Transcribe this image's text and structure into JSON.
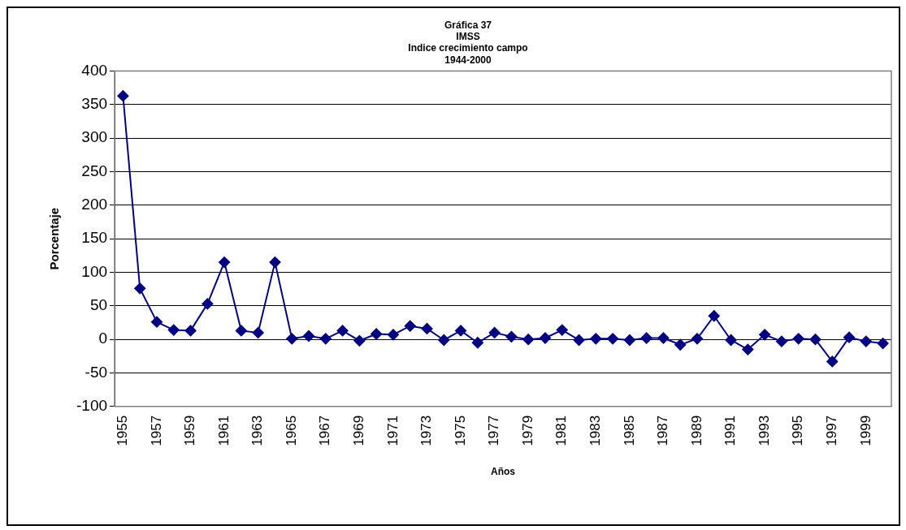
{
  "chart_data": {
    "type": "line",
    "title": "Gráfica 37\nIMSS\nIndice crecimiento campo\n1944-2000",
    "xlabel": "Años",
    "ylabel": "Porcentaje",
    "categories": [
      "1955",
      null,
      "1957",
      null,
      "1959",
      null,
      "1961",
      null,
      "1963",
      null,
      "1965",
      null,
      "1967",
      null,
      "1969",
      null,
      "1971",
      null,
      "1973",
      null,
      "1975",
      null,
      "1977",
      null,
      "1979",
      null,
      "1981",
      null,
      "1983",
      null,
      "1985",
      null,
      "1987",
      null,
      "1989",
      null,
      "1991",
      null,
      "1993",
      null,
      "1995",
      null,
      "1997",
      null,
      "1999",
      null
    ],
    "series": [
      {
        "color": "#000080",
        "values": [
          363,
          76,
          26,
          14,
          13,
          53,
          115,
          13,
          10,
          115,
          1,
          5,
          1,
          13,
          -2,
          8,
          7,
          20,
          16,
          -1,
          13,
          -5,
          10,
          4,
          0,
          2,
          14,
          -1,
          1,
          1,
          -1,
          2,
          2,
          -8,
          1,
          35,
          -1,
          -15,
          7,
          -3,
          1,
          0,
          -33,
          3,
          -3,
          -6
        ]
      }
    ],
    "ylim": [
      -100,
      400
    ],
    "yticks": [
      -100,
      -50,
      0,
      50,
      100,
      150,
      200,
      250,
      300,
      350,
      400
    ],
    "grid": "y",
    "legend": false,
    "marker": "diamond",
    "line_style": "solid"
  }
}
